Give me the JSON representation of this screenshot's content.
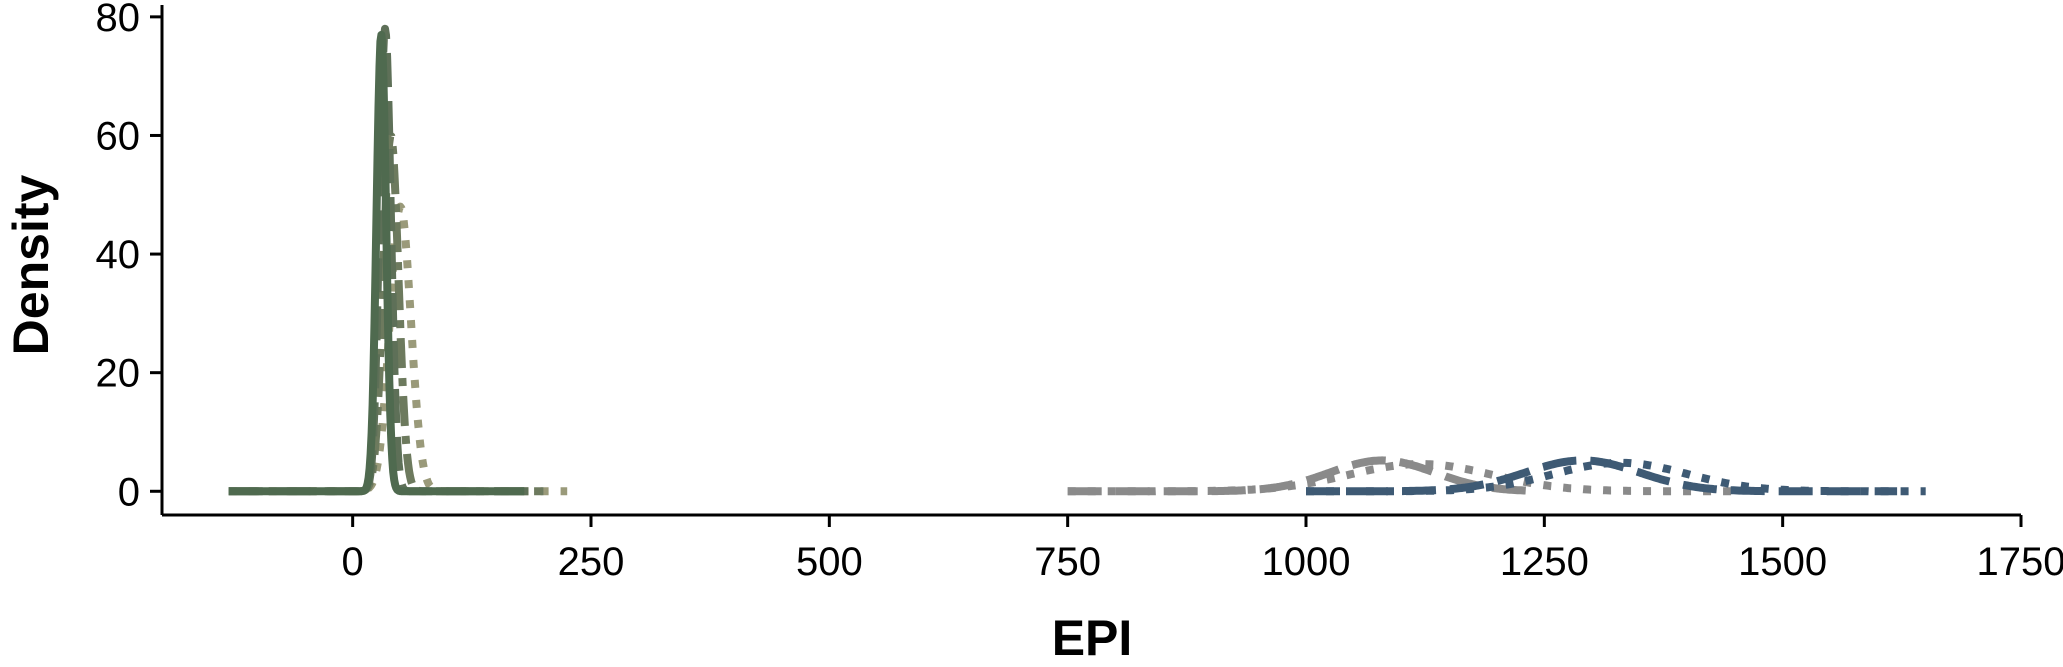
{
  "chart_data": {
    "type": "line",
    "title": "",
    "xlabel": "EPI",
    "ylabel": "Density",
    "xlim": [
      -200,
      1750
    ],
    "ylim": [
      -4,
      82
    ],
    "xticks": [
      0,
      250,
      500,
      750,
      1000,
      1250,
      1500,
      1750
    ],
    "yticks": [
      0,
      20,
      40,
      60,
      80
    ],
    "xtick_labels": [
      "0",
      "250",
      "500",
      "750",
      "1000",
      "1250",
      "1500",
      "1750"
    ],
    "ytick_labels": [
      "0",
      "20",
      "40",
      "60",
      "80"
    ],
    "grid": false,
    "legend": null,
    "series": [
      {
        "color": "#8a8a8a",
        "style": "dashed",
        "kind": "gaussian",
        "mean": 1080,
        "sd": 55,
        "peak": 5.2,
        "range": [
          750,
          1240
        ]
      },
      {
        "color": "#8a8a8a",
        "style": "dotted",
        "kind": "gaussian",
        "mean": 1120,
        "sd": 75,
        "peak": 4.6,
        "range": [
          750,
          1450
        ]
      },
      {
        "color": "#3e5a74",
        "style": "dashed",
        "kind": "gaussian",
        "mean": 1290,
        "sd": 60,
        "peak": 5.2,
        "range": [
          1000,
          1620
        ]
      },
      {
        "color": "#3e5a74",
        "style": "dotted",
        "kind": "gaussian",
        "mean": 1330,
        "sd": 70,
        "peak": 4.8,
        "range": [
          1000,
          1650
        ]
      },
      {
        "color": "#9a9a7a",
        "style": "dotted",
        "kind": "gaussian",
        "mean": 50,
        "sd": 11,
        "peak": 48,
        "range": [
          -130,
          225
        ]
      },
      {
        "color": "#6d7a5e",
        "style": "dashdot",
        "kind": "gaussian",
        "mean": 40,
        "sd": 8,
        "peak": 60,
        "range": [
          -130,
          200
        ]
      },
      {
        "color": "#5e7058",
        "style": "dashed",
        "kind": "gaussian",
        "mean": 34,
        "sd": 6,
        "peak": 78,
        "range": [
          -130,
          200
        ]
      },
      {
        "color": "#4f6a4f",
        "style": "solid",
        "kind": "gaussian",
        "mean": 30,
        "sd": 5,
        "peak": 77,
        "range": [
          -130,
          180
        ]
      }
    ]
  }
}
